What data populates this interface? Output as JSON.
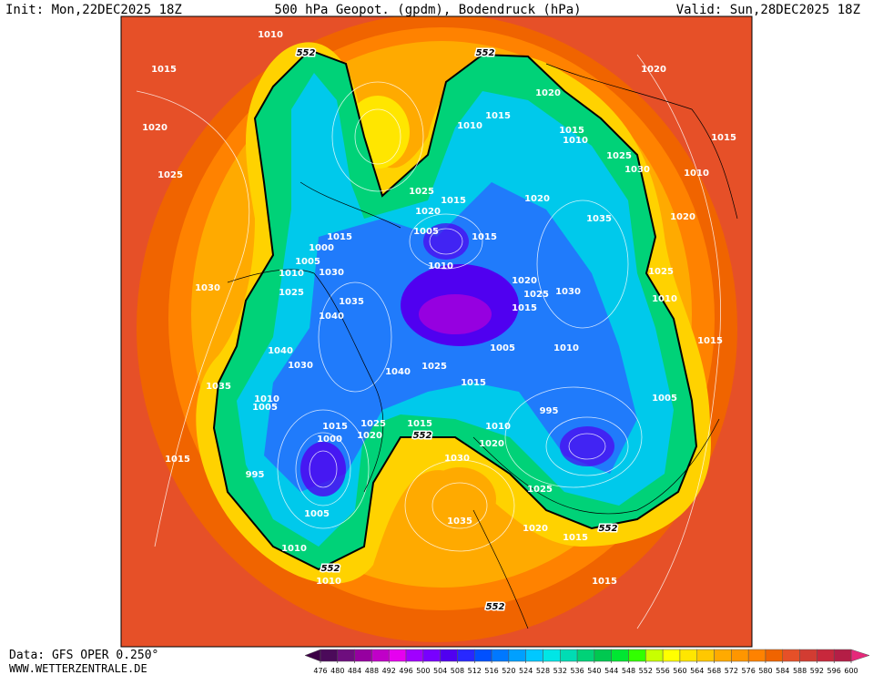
{
  "header": {
    "init": "Init: Mon,22DEC2025 18Z",
    "title": "500 hPa Geopot. (gpdm), Bodendruck (hPa)",
    "valid": "Valid: Sun,28DEC2025 18Z"
  },
  "footer": {
    "source": "Data: GFS OPER 0.250°",
    "site": "WWW.WETTERZENTRALE.DE"
  },
  "map_labels": [
    1010,
    552,
    552,
    1015,
    1020,
    1020,
    1020,
    1010,
    1015,
    1015,
    1010,
    1015,
    1025,
    1025,
    1030,
    1010,
    1025,
    1015,
    1020,
    1020,
    1035,
    1020,
    1005,
    1015,
    1015,
    1000,
    1005,
    1010,
    1010,
    1030,
    1025,
    1030,
    1025,
    1020,
    1025,
    1030,
    1010,
    1035,
    1015,
    1040,
    1005,
    1010,
    1015,
    1040,
    1030,
    1040,
    1025,
    1035,
    1015,
    1010,
    1005,
    995,
    1005,
    1025,
    1015,
    1015,
    1020,
    552,
    1010,
    1000,
    1020,
    1030,
    1015,
    995,
    1025,
    1005,
    1035,
    1020,
    1015,
    552,
    1010,
    552,
    1010,
    1015,
    552
  ],
  "colorbar": {
    "ticks": [
      476,
      480,
      484,
      488,
      492,
      496,
      500,
      504,
      508,
      512,
      516,
      520,
      524,
      528,
      532,
      536,
      540,
      544,
      548,
      552,
      556,
      560,
      564,
      568,
      572,
      576,
      580,
      584,
      588,
      592,
      596,
      600
    ],
    "colors": [
      "#4b0a5a",
      "#6e0e7e",
      "#9600a0",
      "#c000c8",
      "#e600f0",
      "#a000ff",
      "#7800ff",
      "#5000f0",
      "#2828ff",
      "#0050ff",
      "#0078ff",
      "#00a0ff",
      "#00c8ff",
      "#00e6e6",
      "#00dcb4",
      "#00d278",
      "#00c850",
      "#00e632",
      "#32ff00",
      "#c8ff00",
      "#ffff00",
      "#ffe600",
      "#ffc800",
      "#ffaa00",
      "#ff9600",
      "#ff8200",
      "#f06400",
      "#e65028",
      "#d23c32",
      "#c8283c",
      "#b41e46"
    ],
    "low_color": "#3c0046",
    "high_color": "#e6287a"
  }
}
